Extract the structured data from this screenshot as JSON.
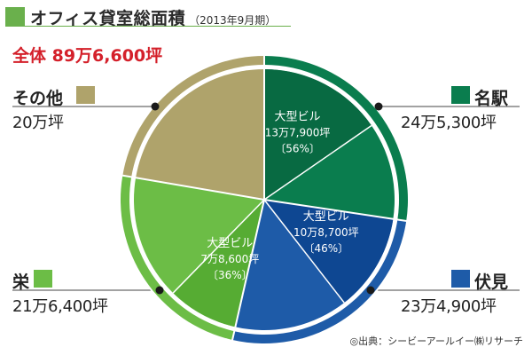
{
  "title": "オフィス貸室総面積",
  "title_period": "（2013年9月期）",
  "total_label": "全体 89万6,600坪",
  "source": "◎出典：シービーアールイー㈱リサーチ",
  "chart_data": {
    "type": "pie",
    "title": "オフィス貸室総面積",
    "unit": "坪",
    "total": 896600,
    "segments": [
      {
        "key": "meieki",
        "name": "名駅",
        "value": 245300,
        "value_label": "24万5,300坪",
        "color": "#0a7d4e",
        "color_dark": "#086a42",
        "large_building": {
          "name": "大型ビル",
          "value": 137900,
          "value_label": "13万7,900坪",
          "pct_label": "〔56%〕"
        }
      },
      {
        "key": "fushimi",
        "name": "伏見",
        "value": 234900,
        "value_label": "23万4,900坪",
        "color": "#1e5ba8",
        "color_dark": "#0e4792",
        "large_building": {
          "name": "大型ビル",
          "value": 108700,
          "value_label": "10万8,700坪",
          "pct_label": "〔46%〕"
        }
      },
      {
        "key": "sakae",
        "name": "栄",
        "value": 216400,
        "value_label": "21万6,400坪",
        "color": "#6cbd46",
        "color_dark": "#56ac33",
        "large_building": {
          "name": "大型ビル",
          "value": 78600,
          "value_label": "7万8,600坪",
          "pct_label": "〔36%〕"
        }
      },
      {
        "key": "other",
        "name": "その他",
        "value": 200000,
        "value_label": "20万坪",
        "color": "#afa36b",
        "color_dark": "#afa36b",
        "large_building": null
      }
    ]
  }
}
